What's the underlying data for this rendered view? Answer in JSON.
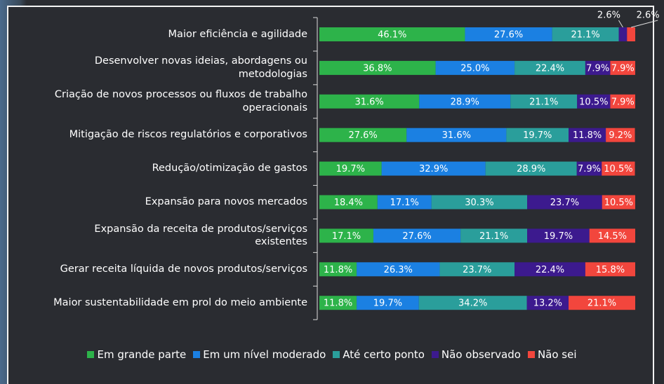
{
  "chart_data": {
    "type": "stacked-bar-horizontal",
    "categories": [
      "Maior eficiência e agilidade",
      "Desenvolver novas ideias, abordagens ou\nmetodologias",
      "Criação de novos processos ou fluxos de trabalho\noperacionais",
      "Mitigação de riscos regulatórios e corporativos",
      "Redução/otimização de gastos",
      "Expansão para novos mercados",
      "Expansão da receita de produtos/serviços\nexistentes",
      "Gerar receita líquida de novos produtos/serviços",
      "Maior sustentabilidade em prol do meio ambiente"
    ],
    "series": [
      {
        "name": "Em grande parte",
        "color": "#2db34a",
        "values": [
          46.1,
          36.8,
          31.6,
          27.6,
          19.7,
          18.4,
          17.1,
          11.8,
          11.8
        ],
        "value_labels": [
          "46.1%",
          "36.8%",
          "31.6%",
          "27.6%",
          "19.7%",
          "18.4%",
          "17.1%",
          "11.8%",
          "11.8%"
        ]
      },
      {
        "name": "Em um nível moderado",
        "color": "#1b80e2",
        "values": [
          27.6,
          25.0,
          28.9,
          31.6,
          32.9,
          17.1,
          27.6,
          26.3,
          19.7
        ],
        "value_labels": [
          "27.6%",
          "25.0%",
          "28.9%",
          "31.6%",
          "32.9%",
          "17.1%",
          "27.6%",
          "26.3%",
          "19.7%"
        ]
      },
      {
        "name": "Até certo ponto",
        "color": "#2a9e9b",
        "values": [
          21.1,
          22.4,
          21.1,
          19.7,
          28.9,
          30.3,
          21.1,
          23.7,
          34.2
        ],
        "value_labels": [
          "21.1%",
          "22.4%",
          "21.1%",
          "19.7%",
          "28.9%",
          "30.3%",
          "21.1%",
          "23.7%",
          "34.2%"
        ]
      },
      {
        "name": "Não observado",
        "color": "#3c1a8e",
        "values": [
          2.6,
          7.9,
          10.5,
          11.8,
          7.9,
          23.7,
          19.7,
          22.4,
          13.2
        ],
        "value_labels": [
          "2.6%",
          "7.9%",
          "10.5%",
          "11.8%",
          "7.9%",
          "23.7%",
          "19.7%",
          "22.4%",
          "13.2%"
        ]
      },
      {
        "name": "Não sei",
        "color": "#f2463d",
        "values": [
          2.6,
          7.9,
          7.9,
          9.2,
          10.5,
          10.5,
          14.5,
          15.8,
          21.1
        ],
        "value_labels": [
          "2.6%",
          "7.9%",
          "7.9%",
          "9.2%",
          "10.5%",
          "10.5%",
          "14.5%",
          "15.8%",
          "21.1%"
        ]
      }
    ],
    "legend": "bottom"
  }
}
